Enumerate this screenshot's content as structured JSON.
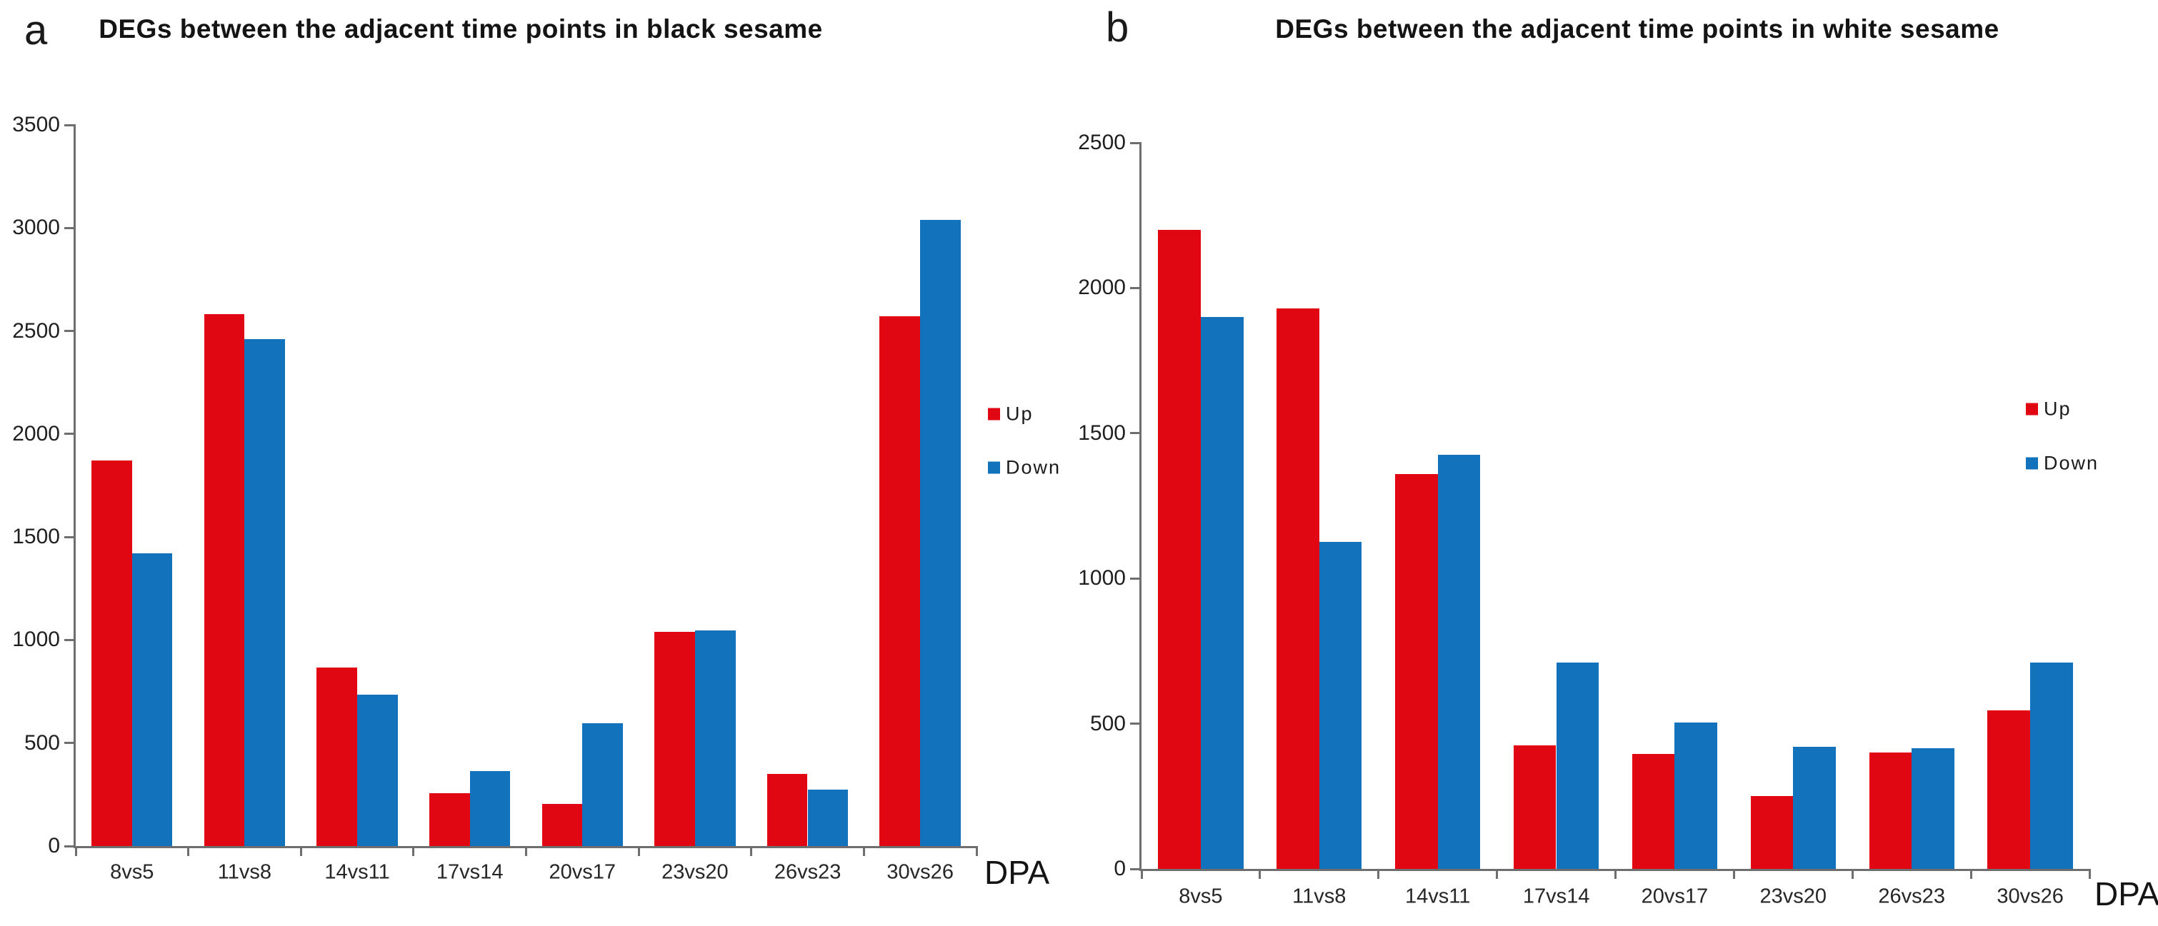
{
  "figure": {
    "background": "#ffffff",
    "colors": {
      "up": "#e00713",
      "down": "#1273bc",
      "axis": "#6e6e6e"
    }
  },
  "chart_data": [
    {
      "type": "bar",
      "panel_label": "a",
      "title": "DEGs between the adjacent time points in black sesame",
      "xlabel": "DPA",
      "ylabel": "",
      "categories": [
        "8vs5",
        "11vs8",
        "14vs11",
        "17vs14",
        "20vs17",
        "23vs20",
        "26vs23",
        "30vs26"
      ],
      "series": [
        {
          "name": "Up",
          "color": "#e00713",
          "values": [
            1870,
            2580,
            865,
            255,
            205,
            1040,
            350,
            2570
          ]
        },
        {
          "name": "Down",
          "color": "#1273bc",
          "values": [
            1420,
            2460,
            735,
            365,
            595,
            1045,
            275,
            3040
          ]
        }
      ],
      "ylim": [
        0,
        3500
      ],
      "ytick_step": 500,
      "yticks": [
        0,
        500,
        1000,
        1500,
        2000,
        2500,
        3000,
        3500
      ],
      "grid": false,
      "legend_position": "right-middle",
      "legend": [
        "Up",
        "Down"
      ]
    },
    {
      "type": "bar",
      "panel_label": "b",
      "title": "DEGs between the adjacent time points in white sesame",
      "xlabel": "DPA",
      "ylabel": "",
      "categories": [
        "8vs5",
        "11vs8",
        "14vs11",
        "17vs14",
        "20vs17",
        "23vs20",
        "26vs23",
        "30vs26"
      ],
      "series": [
        {
          "name": "Up",
          "color": "#e00713",
          "values": [
            2200,
            1930,
            1360,
            425,
            395,
            250,
            400,
            545
          ]
        },
        {
          "name": "Down",
          "color": "#1273bc",
          "values": [
            1900,
            1125,
            1425,
            710,
            505,
            420,
            415,
            710
          ]
        }
      ],
      "ylim": [
        0,
        2500
      ],
      "ytick_step": 500,
      "yticks": [
        0,
        500,
        1000,
        1500,
        2000,
        2500
      ],
      "grid": false,
      "legend_position": "right-middle",
      "legend": [
        "Up",
        "Down"
      ]
    }
  ]
}
